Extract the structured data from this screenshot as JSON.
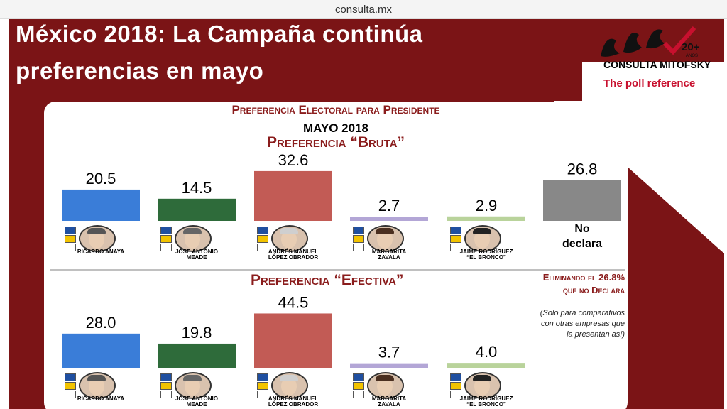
{
  "browser": {
    "url": "consulta.mx"
  },
  "slide": {
    "title_line1": "México 2018: La Campaña continúa",
    "title_line2": "preferencias en mayo"
  },
  "logo": {
    "anniversary": "20+",
    "anniversary_sub": "AÑOS",
    "name": "CONSULTA MITOFSKY",
    "tagline": "The poll reference"
  },
  "colors": {
    "brand_red": "#7b1416",
    "accent_red": "#8a1c1c"
  },
  "panel": {
    "title": "Preferencia Electoral para Presidente",
    "period": "MAYO 2018",
    "section1_title": "Preferencia “Bruta”",
    "section2_title": "Preferencia “Efectiva”",
    "note_red_line1": "Eliminando el 26.8%",
    "note_red_line2": "que no Declara",
    "note_line1": "(Solo para comparativos",
    "note_line2": "con otras empresas que",
    "note_line3": "la presentan así)"
  },
  "candidates": [
    {
      "name_line1": "RICARDO ANAYA",
      "name_line2": "",
      "party_icon": "pan-prd-mc-logos",
      "hair": "#555555"
    },
    {
      "name_line1": "JOSE ANTONIO",
      "name_line2": "MEADE",
      "party_icon": "pri-pvem-panal-logos",
      "hair": "#666666"
    },
    {
      "name_line1": "ANDRÉS MANUEL",
      "name_line2": "LÓPEZ OBRADOR",
      "party_icon": "morena-pt-pes-logos",
      "hair": "#cfcfcf"
    },
    {
      "name_line1": "MARGARITA",
      "name_line2": "ZAVALA",
      "party_icon": "independiente-logo",
      "hair": "#4a2f20"
    },
    {
      "name_line1": "JAIME RODRÍGUEZ",
      "name_line2": "“EL BRONCO”",
      "party_icon": "independiente-logo",
      "hair": "#222222"
    }
  ],
  "no_declara": {
    "line1": "No",
    "line2": "declara"
  },
  "chart_data": [
    {
      "type": "bar",
      "title": "Preferencia “Bruta”",
      "subtitle": "MAYO 2018",
      "categories": [
        "RICARDO ANAYA",
        "JOSE ANTONIO MEADE",
        "ANDRÉS MANUEL LÓPEZ OBRADOR",
        "MARGARITA ZAVALA",
        "JAIME RODRÍGUEZ “EL BRONCO”",
        "No declara"
      ],
      "values": [
        20.5,
        14.5,
        32.6,
        2.7,
        2.9,
        26.8
      ],
      "labels": [
        "20.5",
        "14.5",
        "32.6",
        "2.7",
        "2.9",
        "26.8"
      ],
      "colors": [
        "#3a7dd8",
        "#2e6b3a",
        "#c25b55",
        "#b3a6d6",
        "#b9d39b",
        "#888888"
      ],
      "unit": "%",
      "ylim": [
        0,
        35
      ],
      "xlabel": "",
      "ylabel": ""
    },
    {
      "type": "bar",
      "title": "Preferencia “Efectiva”",
      "categories": [
        "RICARDO ANAYA",
        "JOSE ANTONIO MEADE",
        "ANDRÉS MANUEL LÓPEZ OBRADOR",
        "MARGARITA ZAVALA",
        "JAIME RODRÍGUEZ “EL BRONCO”"
      ],
      "values": [
        28.0,
        19.8,
        44.5,
        3.7,
        4.0
      ],
      "labels": [
        "28.0",
        "19.8",
        "44.5",
        "3.7",
        "4.0"
      ],
      "colors": [
        "#3a7dd8",
        "#2e6b3a",
        "#c25b55",
        "#b3a6d6",
        "#b9d39b"
      ],
      "unit": "%",
      "ylim": [
        0,
        48
      ],
      "xlabel": "",
      "ylabel": ""
    }
  ]
}
